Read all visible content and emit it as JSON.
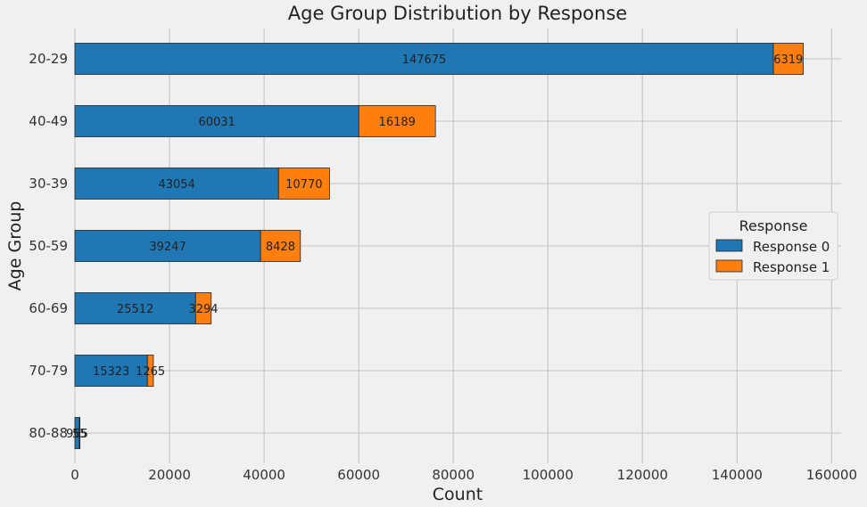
{
  "chart_data": {
    "type": "bar",
    "orientation": "horizontal",
    "stacked": true,
    "title": "Age Group Distribution by Response",
    "xlabel": "Count",
    "ylabel": "Age Group",
    "xlim": [
      0,
      162000
    ],
    "xticks": [
      0,
      20000,
      40000,
      60000,
      80000,
      100000,
      120000,
      140000,
      160000
    ],
    "grid": true,
    "legend_position": "right",
    "legend_title": "Response",
    "categories": [
      "20-29",
      "40-49",
      "30-39",
      "50-59",
      "60-69",
      "70-79",
      "80-88"
    ],
    "series": [
      {
        "name": "Response 0",
        "color": "#1f77b4",
        "values": [
          147675,
          60031,
          43054,
          39247,
          25512,
          15323,
          965
        ]
      },
      {
        "name": "Response 1",
        "color": "#ff7f0e",
        "values": [
          6319,
          16189,
          10770,
          8428,
          3294,
          1265,
          55
        ]
      }
    ]
  }
}
